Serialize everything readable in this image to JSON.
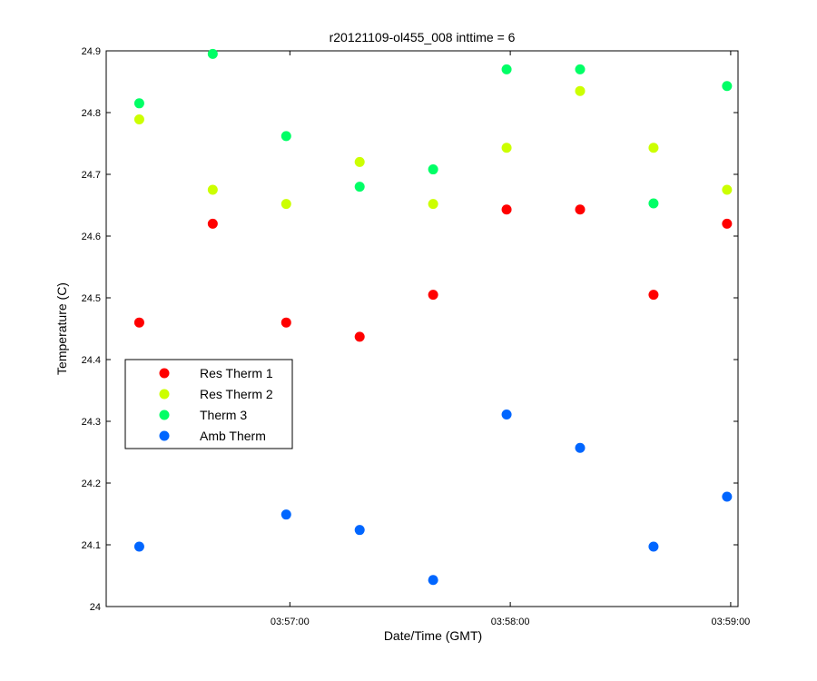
{
  "chart_data": {
    "type": "scatter",
    "title": "r20121109-ol455_008 inttime = 6",
    "xlabel": "Date/Time (GMT)",
    "ylabel": "Temperature (C)",
    "xlim": [
      "03:56:10",
      "03:59:02"
    ],
    "ylim": [
      24.0,
      24.9
    ],
    "x_tick_labels": [
      "03:57:00",
      "03:58:00",
      "03:59:00"
    ],
    "y_tick_labels": [
      "24",
      "24.1",
      "24.2",
      "24.3",
      "24.4",
      "24.5",
      "24.6",
      "24.7",
      "24.8",
      "24.9"
    ],
    "x": [
      "03:56:19",
      "03:56:39",
      "03:56:59",
      "03:57:19",
      "03:57:39",
      "03:57:59",
      "03:58:19",
      "03:58:39",
      "03:58:59"
    ],
    "series": [
      {
        "name": "Res Therm 1",
        "color": "#ff0000",
        "values": [
          24.46,
          24.62,
          24.46,
          24.437,
          24.505,
          24.643,
          24.643,
          24.505,
          24.62
        ]
      },
      {
        "name": "Res Therm 2",
        "color": "#ccff00",
        "values": [
          24.789,
          24.675,
          24.652,
          24.72,
          24.652,
          24.743,
          24.835,
          24.743,
          24.675
        ]
      },
      {
        "name": "Therm 3",
        "color": "#00ff66",
        "values": [
          24.815,
          24.895,
          24.762,
          24.68,
          24.708,
          24.87,
          24.87,
          24.653,
          24.843
        ]
      },
      {
        "name": "Amb Therm",
        "color": "#0066ff",
        "values": [
          24.097,
          null,
          24.149,
          24.124,
          24.043,
          24.311,
          24.257,
          24.097,
          24.178
        ]
      }
    ],
    "legend_position": "left-middle",
    "grid": false
  }
}
